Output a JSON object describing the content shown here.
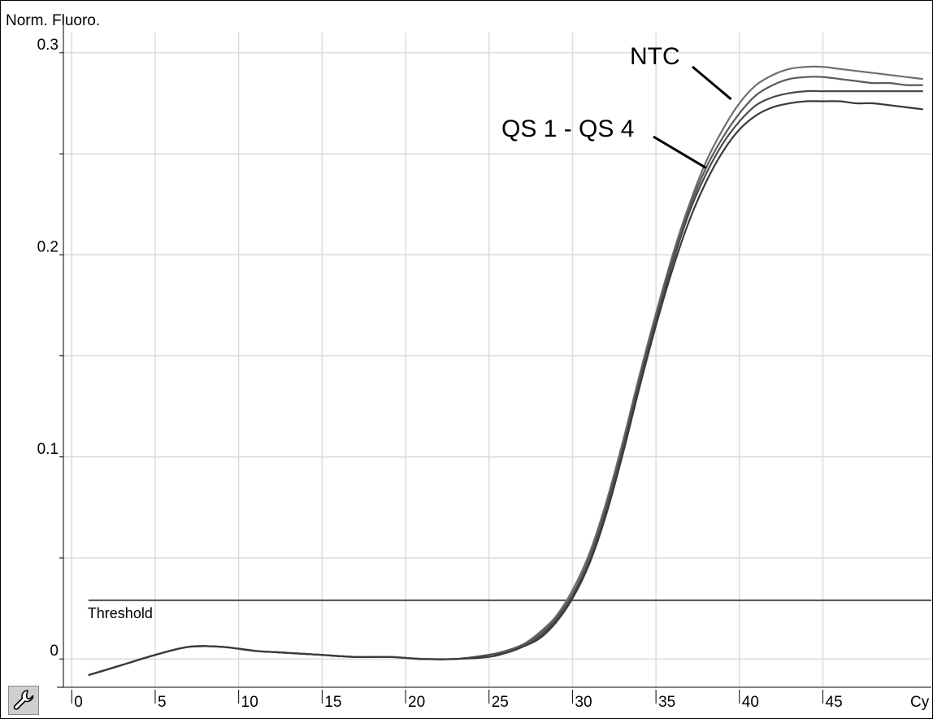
{
  "chart_data": {
    "type": "line",
    "ylabel": "Norm. Fluoro.",
    "xlabel": "Cy",
    "xlim": [
      -0.5,
      51.5
    ],
    "ylim": [
      -0.014,
      0.31
    ],
    "x_ticks": [
      0,
      5,
      10,
      15,
      20,
      25,
      30,
      35,
      40,
      45
    ],
    "x_tick_labels": [
      "0",
      "5",
      "10",
      "15",
      "20",
      "25",
      "30",
      "35",
      "40",
      "45"
    ],
    "y_ticks": [
      0,
      0.1,
      0.2,
      0.3
    ],
    "y_tick_labels": [
      "0",
      "0.1",
      "0.2",
      "0.3"
    ],
    "y_minor_ticks": [
      0.05,
      0.15,
      0.25
    ],
    "x_axis_end_label": "Cy",
    "grid": true,
    "threshold": {
      "label": "Threshold",
      "value": 0.029
    },
    "annotations": [
      {
        "text": "NTC",
        "x": 39.5,
        "y": 0.277
      },
      {
        "text": "QS 1 - QS 4",
        "x": 38,
        "y": 0.243
      }
    ],
    "x": [
      1,
      3,
      5,
      7,
      9,
      11,
      13,
      15,
      17,
      19,
      21,
      23,
      25,
      26,
      27,
      28,
      29,
      30,
      31,
      32,
      33,
      34,
      35,
      36,
      37,
      38,
      39,
      40,
      41,
      42,
      43,
      44,
      45,
      46,
      47,
      48,
      49,
      50,
      51
    ],
    "series": [
      {
        "values": [
          -0.008,
          -0.003,
          0.002,
          0.006,
          0.006,
          0.004,
          0.003,
          0.002,
          0.001,
          0.001,
          0.0,
          0.0,
          0.002,
          0.004,
          0.007,
          0.013,
          0.021,
          0.034,
          0.052,
          0.077,
          0.107,
          0.14,
          0.171,
          0.2,
          0.225,
          0.246,
          0.262,
          0.275,
          0.284,
          0.289,
          0.292,
          0.293,
          0.293,
          0.292,
          0.291,
          0.29,
          0.289,
          0.288,
          0.287
        ]
      },
      {
        "values": [
          -0.008,
          -0.003,
          0.002,
          0.006,
          0.006,
          0.004,
          0.003,
          0.002,
          0.001,
          0.001,
          0.0,
          0.0,
          0.002,
          0.004,
          0.007,
          0.012,
          0.02,
          0.032,
          0.05,
          0.075,
          0.105,
          0.138,
          0.169,
          0.198,
          0.223,
          0.243,
          0.258,
          0.27,
          0.279,
          0.284,
          0.287,
          0.288,
          0.288,
          0.287,
          0.286,
          0.285,
          0.285,
          0.284,
          0.284
        ]
      },
      {
        "values": [
          -0.008,
          -0.003,
          0.002,
          0.006,
          0.006,
          0.004,
          0.003,
          0.002,
          0.001,
          0.001,
          0.0,
          0.0,
          0.002,
          0.003,
          0.006,
          0.011,
          0.019,
          0.031,
          0.048,
          0.073,
          0.103,
          0.136,
          0.167,
          0.196,
          0.221,
          0.24,
          0.255,
          0.266,
          0.274,
          0.278,
          0.28,
          0.281,
          0.281,
          0.281,
          0.281,
          0.281,
          0.281,
          0.281,
          0.281
        ]
      },
      {
        "values": [
          -0.008,
          -0.003,
          0.002,
          0.006,
          0.006,
          0.004,
          0.003,
          0.002,
          0.001,
          0.001,
          0.0,
          0.0,
          0.001,
          0.003,
          0.006,
          0.01,
          0.018,
          0.03,
          0.047,
          0.071,
          0.101,
          0.134,
          0.165,
          0.193,
          0.217,
          0.236,
          0.251,
          0.262,
          0.269,
          0.273,
          0.275,
          0.276,
          0.276,
          0.276,
          0.275,
          0.275,
          0.274,
          0.273,
          0.272
        ]
      }
    ],
    "colors": {
      "series": [
        "#6e6e6e",
        "#5a5a5a",
        "#4a4a4a",
        "#3a3a3a"
      ],
      "grid": "#dcdcdc",
      "threshold": "#555555"
    }
  },
  "toolbar": {
    "wrench_icon": "wrench-icon"
  }
}
